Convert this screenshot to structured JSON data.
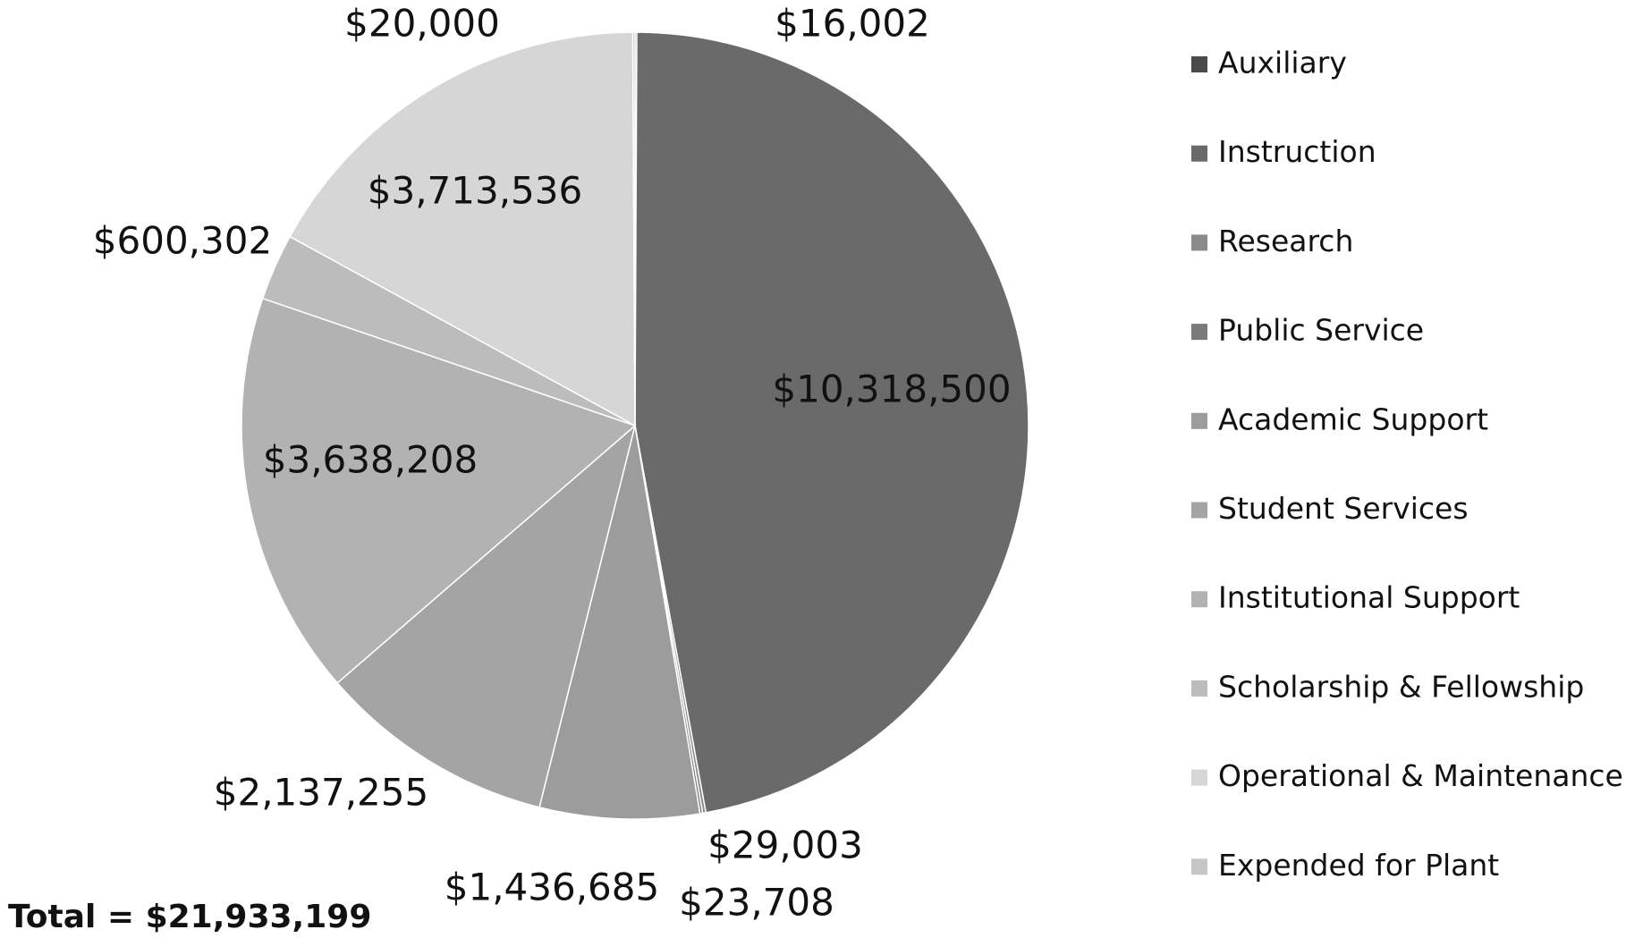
{
  "chart_data": {
    "type": "pie",
    "categories": [
      "Auxiliary",
      "Instruction",
      "Research",
      "Public Service",
      "Academic Support",
      "Student Services",
      "Institutional Support",
      "Scholarship & Fellowship",
      "Operational & Maintenance",
      "Expended for Plant"
    ],
    "values": [
      16002,
      10318500,
      29003,
      23708,
      1436685,
      2137255,
      3638208,
      600302,
      3713536,
      20000
    ],
    "value_labels": [
      "$16,002",
      "$10,318,500",
      "$29,003",
      "$23,708",
      "$1,436,685",
      "$2,137,255",
      "$3,638,208",
      "$600,302",
      "$3,713,536",
      "$20,000"
    ],
    "colors": [
      "#4a4a4a",
      "#6a6a6a",
      "#8a8a8a",
      "#7a7a7a",
      "#9c9c9c",
      "#a4a4a4",
      "#b2b2b2",
      "#bcbcbc",
      "#d6d6d6",
      "#c6c6c6"
    ],
    "total_label": "Total = $21,933,199",
    "legend": "right"
  }
}
